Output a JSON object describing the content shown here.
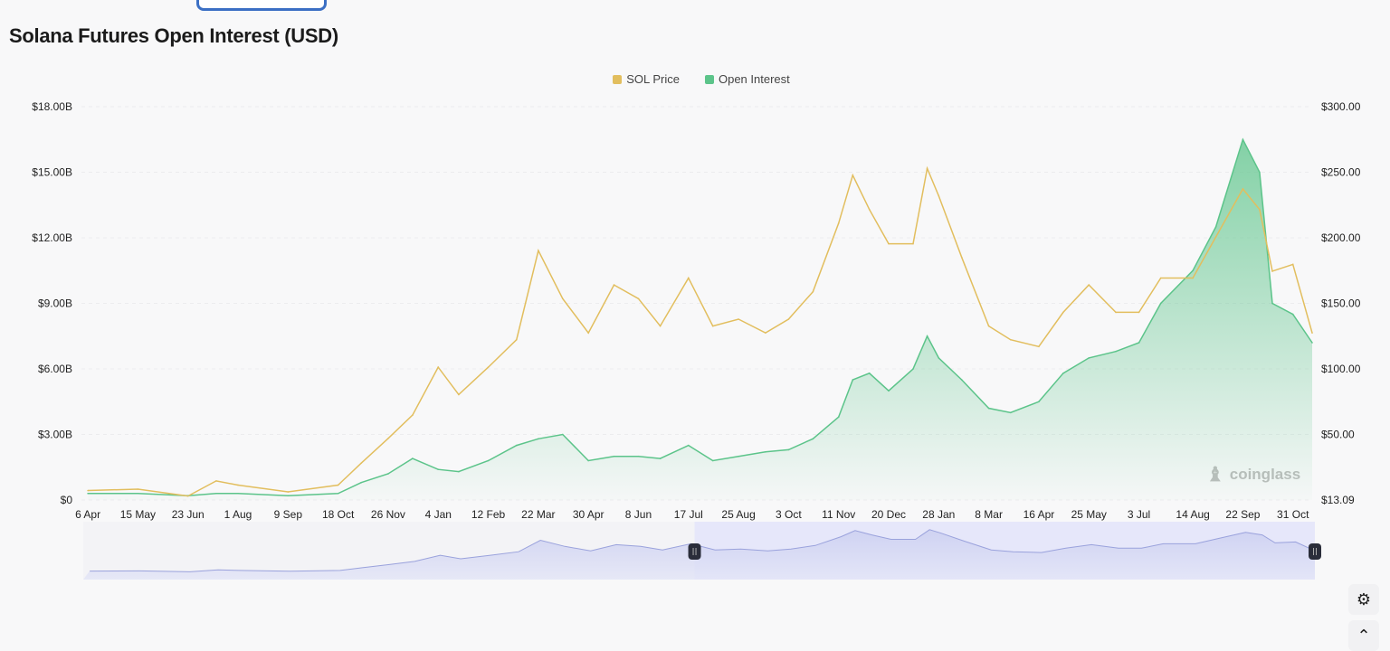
{
  "chart_data": {
    "type": "line",
    "title": "Solana Futures Open Interest (USD)",
    "legend_position": "top-center",
    "grid": true,
    "x_tick_labels": [
      "6 Apr",
      "15 May",
      "23 Jun",
      "1 Aug",
      "9 Sep",
      "18 Oct",
      "26 Nov",
      "4 Jan",
      "12 Feb",
      "22 Mar",
      "30 Apr",
      "8 Jun",
      "17 Jul",
      "25 Aug",
      "3 Oct",
      "11 Nov",
      "20 Dec",
      "28 Jan",
      "8 Mar",
      "16 Apr",
      "25 May",
      "3 Jul",
      "14 Aug",
      "22 Sep",
      "31 Oct"
    ],
    "x_tick_dates": [
      "2023-04-06",
      "2023-05-15",
      "2023-06-23",
      "2023-08-01",
      "2023-09-09",
      "2023-10-18",
      "2023-11-26",
      "2024-01-04",
      "2024-02-12",
      "2024-03-22",
      "2024-04-30",
      "2024-06-08",
      "2024-07-17",
      "2024-08-25",
      "2024-10-03",
      "2024-11-11",
      "2024-12-20",
      "2025-01-28",
      "2025-03-08",
      "2025-04-16",
      "2025-05-25",
      "2025-07-03",
      "2025-08-14",
      "2025-09-22",
      "2025-10-31"
    ],
    "x_range": [
      "2023-04-01",
      "2025-11-15"
    ],
    "y_left": {
      "ticks": [
        "$0",
        "$3.00B",
        "$6.00B",
        "$9.00B",
        "$12.00B",
        "$15.00B",
        "$18.00B"
      ],
      "range": [
        0,
        18
      ],
      "unit": "B USD"
    },
    "y_right": {
      "ticks": [
        "$13.09",
        "$50.00",
        "$100.00",
        "$150.00",
        "$200.00",
        "$250.00",
        "$300.00"
      ],
      "range": [
        13.09,
        300
      ],
      "unit": "USD"
    },
    "x": [
      "2023-04-06",
      "2023-05-15",
      "2023-06-23",
      "2023-07-15",
      "2023-08-01",
      "2023-09-09",
      "2023-10-18",
      "2023-11-05",
      "2023-11-26",
      "2023-12-15",
      "2024-01-04",
      "2024-01-20",
      "2024-02-12",
      "2024-03-05",
      "2024-03-22",
      "2024-04-10",
      "2024-04-30",
      "2024-05-20",
      "2024-06-08",
      "2024-06-25",
      "2024-07-17",
      "2024-08-05",
      "2024-08-25",
      "2024-09-15",
      "2024-10-03",
      "2024-10-22",
      "2024-11-11",
      "2024-11-22",
      "2024-12-05",
      "2024-12-20",
      "2025-01-08",
      "2025-01-19",
      "2025-01-28",
      "2025-02-15",
      "2025-03-08",
      "2025-03-25",
      "2025-04-16",
      "2025-05-05",
      "2025-05-25",
      "2025-06-15",
      "2025-07-03",
      "2025-07-20",
      "2025-08-14",
      "2025-09-01",
      "2025-09-22",
      "2025-10-05",
      "2025-10-15",
      "2025-10-31",
      "2025-11-15"
    ],
    "series": [
      {
        "name": "SOL Price",
        "axis": "right",
        "color": "#e2be5e",
        "values": [
          20,
          21,
          16,
          27,
          24,
          19,
          24,
          40,
          58,
          75,
          110,
          90,
          110,
          130,
          195,
          160,
          135,
          170,
          160,
          140,
          175,
          140,
          145,
          135,
          145,
          165,
          215,
          250,
          225,
          200,
          200,
          255,
          235,
          190,
          140,
          130,
          125,
          150,
          170,
          150,
          150,
          175,
          175,
          205,
          240,
          225,
          180,
          185,
          135
        ]
      },
      {
        "name": "Open Interest",
        "axis": "left",
        "color": "#5cc48a",
        "values": [
          0.3,
          0.3,
          0.2,
          0.3,
          0.3,
          0.2,
          0.3,
          0.8,
          1.2,
          1.9,
          1.4,
          1.3,
          1.8,
          2.5,
          2.8,
          3.0,
          1.8,
          2.0,
          2.0,
          1.9,
          2.5,
          1.8,
          2.0,
          2.2,
          2.3,
          2.8,
          3.8,
          5.5,
          5.8,
          5.0,
          6.0,
          7.5,
          6.5,
          5.5,
          4.2,
          4.0,
          4.5,
          5.8,
          6.5,
          6.8,
          7.2,
          9.0,
          10.5,
          12.5,
          16.5,
          15.0,
          9.0,
          8.5,
          7.2
        ]
      }
    ],
    "navigator_selection": [
      "2024-07-20",
      "2025-11-15"
    ]
  },
  "legend": [
    {
      "label": "SOL Price",
      "color": "#e2be5e"
    },
    {
      "label": "Open Interest",
      "color": "#5cc48a"
    }
  ],
  "watermark": "coinglass",
  "controls": {
    "alert_icon": "alert-badge-icon",
    "scroll_top_icon": "chevron-up-icon"
  }
}
